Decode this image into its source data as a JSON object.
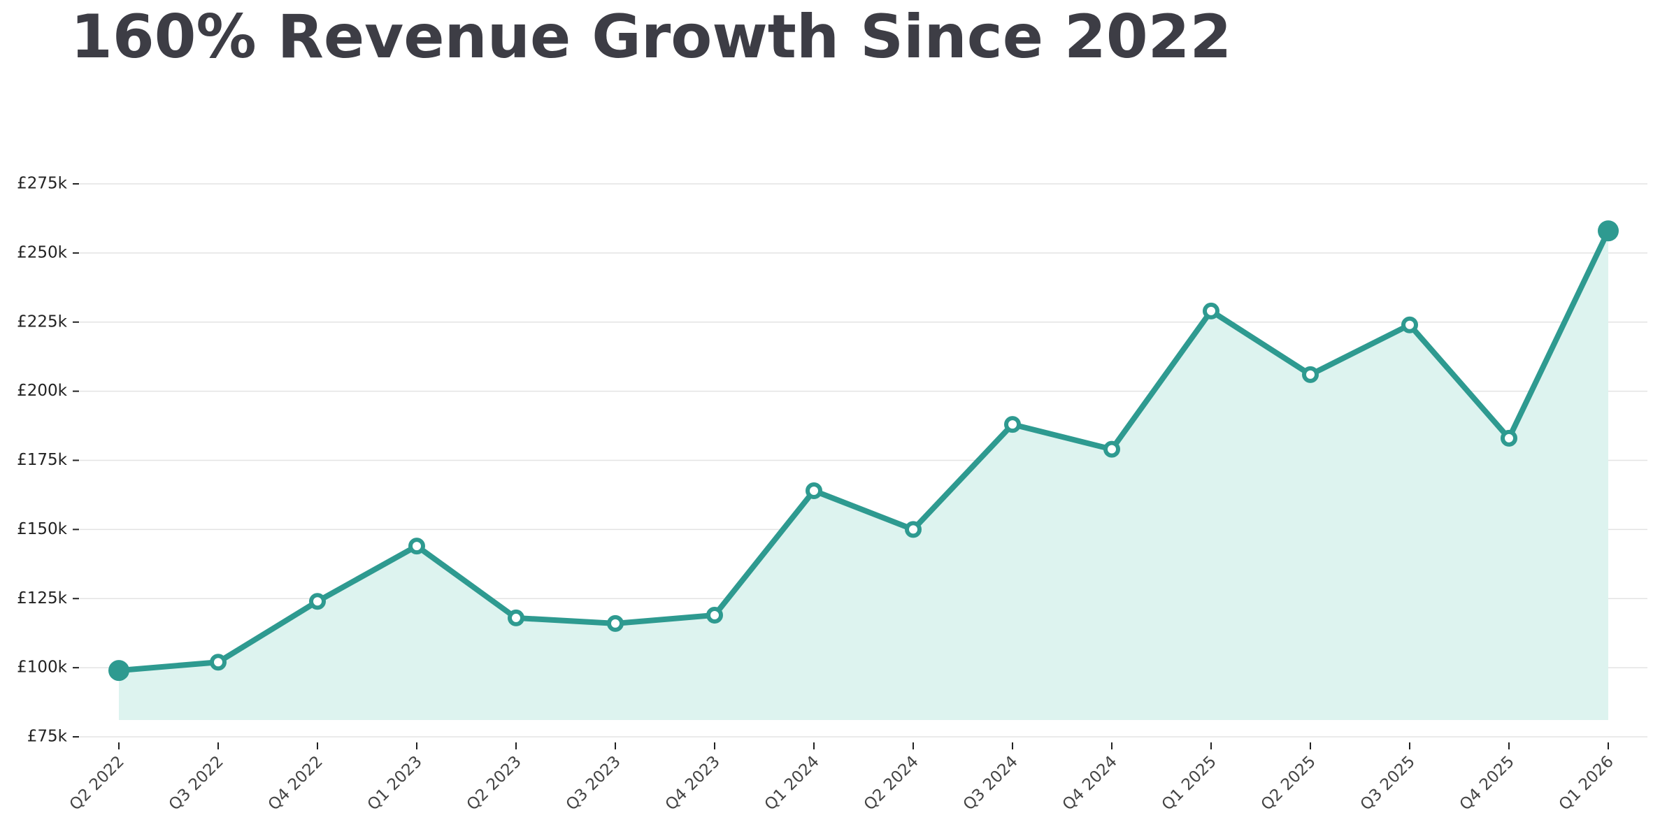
{
  "chart_data": {
    "type": "line",
    "title": "160% Revenue Growth Since 2022",
    "categories": [
      "Q2 2022",
      "Q3 2022",
      "Q4 2022",
      "Q1 2023",
      "Q2 2023",
      "Q3 2023",
      "Q4 2023",
      "Q1 2024",
      "Q2 2024",
      "Q3 2024",
      "Q4 2024",
      "Q1 2025",
      "Q2 2025",
      "Q3 2025",
      "Q4 2025",
      "Q1 2026"
    ],
    "values": [
      99000,
      102000,
      124000,
      144000,
      118000,
      116000,
      119000,
      164000,
      150000,
      188000,
      179000,
      229000,
      206000,
      224000,
      183000,
      258000
    ],
    "color": "#2e9a90",
    "area_color": "#ddf3ef",
    "ylim": [
      75000,
      275000
    ],
    "yticks": [
      {
        "value": 75000,
        "label": "£75k"
      },
      {
        "value": 100000,
        "label": "£100k"
      },
      {
        "value": 125000,
        "label": "£125k"
      },
      {
        "value": 150000,
        "label": "£150k"
      },
      {
        "value": 175000,
        "label": "£175k"
      },
      {
        "value": 200000,
        "label": "£200k"
      },
      {
        "value": 225000,
        "label": "£225k"
      },
      {
        "value": 250000,
        "label": "£250k"
      },
      {
        "value": 275000,
        "label": "£275k"
      }
    ],
    "grid": true
  }
}
